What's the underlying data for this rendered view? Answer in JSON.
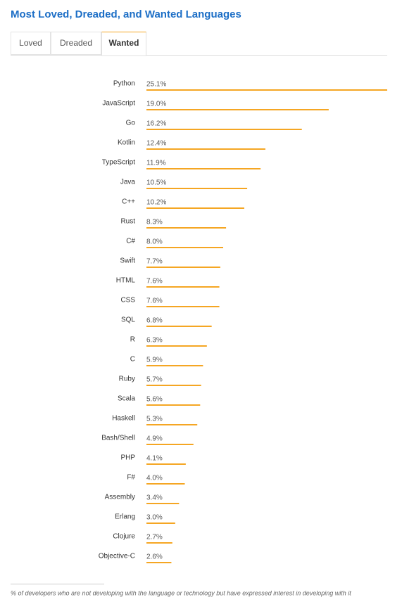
{
  "header": {
    "title": "Most Loved, Dreaded, and Wanted Languages"
  },
  "tabs": [
    "Loved",
    "Dreaded",
    "Wanted"
  ],
  "active_tab": 2,
  "chart_data": {
    "type": "bar",
    "orientation": "horizontal",
    "color": "#f5a623",
    "categories": [
      "Python",
      "JavaScript",
      "Go",
      "Kotlin",
      "TypeScript",
      "Java",
      "C++",
      "Rust",
      "C#",
      "Swift",
      "HTML",
      "CSS",
      "SQL",
      "R",
      "C",
      "Ruby",
      "Scala",
      "Haskell",
      "Bash/Shell",
      "PHP",
      "F#",
      "Assembly",
      "Erlang",
      "Clojure",
      "Objective-C"
    ],
    "values": [
      25.1,
      19.0,
      16.2,
      12.4,
      11.9,
      10.5,
      10.2,
      8.3,
      8.0,
      7.7,
      7.6,
      7.6,
      6.8,
      6.3,
      5.9,
      5.7,
      5.6,
      5.3,
      4.9,
      4.1,
      4.0,
      3.4,
      3.0,
      2.7,
      2.6
    ],
    "value_labels": [
      "25.1%",
      "19.0%",
      "16.2%",
      "12.4%",
      "11.9%",
      "10.5%",
      "10.2%",
      "8.3%",
      "8.0%",
      "7.7%",
      "7.6%",
      "7.6%",
      "6.8%",
      "6.3%",
      "5.9%",
      "5.7%",
      "5.6%",
      "5.3%",
      "4.9%",
      "4.1%",
      "4.0%",
      "3.4%",
      "3.0%",
      "2.7%",
      "2.6%"
    ]
  },
  "footnote": "% of developers who are not developing with the language or technology but have expressed interest in developing with it"
}
